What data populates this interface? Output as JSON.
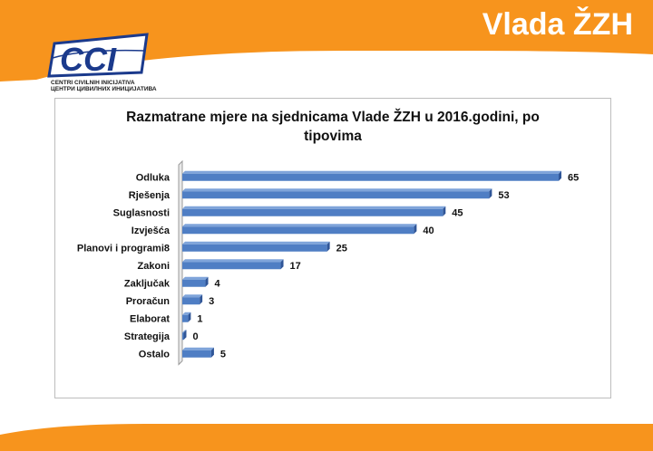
{
  "slide": {
    "title": "Vlada ŽZH",
    "accent_color": "#F7941D"
  },
  "logo": {
    "mark_text": "CCI",
    "subtitle_line1": "CENTRI CIVILNIH INICIJATIVA",
    "subtitle_line2": "ЦЕНТРИ ЦИВИЛНИХ ИНИЦИЈАТИВА",
    "color": "#1B3A8C"
  },
  "chart_data": {
    "type": "bar",
    "orientation": "horizontal",
    "title_line1": "Razmatrane mjere na sjednicama Vlade ŽZH  u 2016.godini, po",
    "title_line2": "tipovima",
    "categories": [
      "Odluka",
      "Rješenja",
      "Suglasnosti",
      "Izvješća",
      "Planovi i programi8",
      "Zakoni",
      "Zaključak",
      "Proračun",
      "Elaborat",
      "Strategija",
      "Ostalo"
    ],
    "values": [
      65,
      53,
      45,
      40,
      25,
      17,
      4,
      3,
      1,
      0,
      5
    ],
    "xlim": [
      0,
      65
    ],
    "grid": false,
    "legend": "none",
    "bar_color": "#4F7EC4"
  }
}
